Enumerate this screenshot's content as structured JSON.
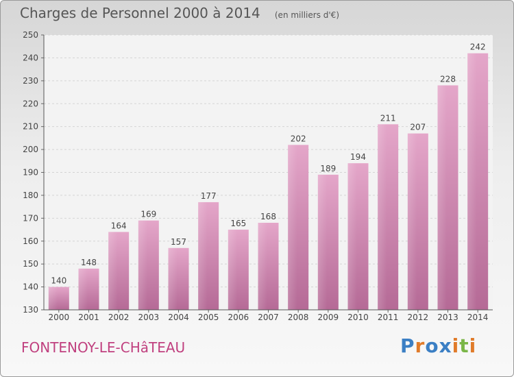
{
  "header": {
    "title": "Charges de Personnel 2000 à 2014",
    "subtitle": "(en milliers d'€)"
  },
  "place": "FONTENOY-LE-CHâTEAU",
  "logo": {
    "text": "Proxiti",
    "letters": [
      {
        "char": "P",
        "color": "#3b7fc4"
      },
      {
        "char": "r",
        "color": "#e07b2a"
      },
      {
        "char": "o",
        "color": "#3b7fc4"
      },
      {
        "char": "x",
        "color": "#3b7fc4"
      },
      {
        "char": "i",
        "color": "#e07b2a"
      },
      {
        "char": "t",
        "color": "#7ab648"
      },
      {
        "char": "i",
        "color": "#e07b2a"
      }
    ]
  },
  "chart_data": {
    "type": "bar",
    "categories": [
      "2000",
      "2001",
      "2002",
      "2003",
      "2004",
      "2005",
      "2006",
      "2007",
      "2008",
      "2009",
      "2010",
      "2011",
      "2012",
      "2013",
      "2014"
    ],
    "values": [
      140,
      148,
      164,
      169,
      157,
      177,
      165,
      168,
      202,
      189,
      194,
      211,
      207,
      228,
      242
    ],
    "ylim": [
      130,
      250
    ],
    "yticks": [
      130,
      140,
      150,
      160,
      170,
      180,
      190,
      200,
      210,
      220,
      230,
      240,
      250
    ],
    "grid": true,
    "bar_color": "#d98db5"
  }
}
